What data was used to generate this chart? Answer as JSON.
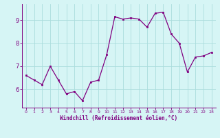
{
  "x": [
    0,
    1,
    2,
    3,
    4,
    5,
    6,
    7,
    8,
    9,
    10,
    11,
    12,
    13,
    14,
    15,
    16,
    17,
    18,
    19,
    20,
    21,
    22,
    23
  ],
  "y": [
    6.6,
    6.4,
    6.2,
    7.0,
    6.4,
    5.8,
    5.9,
    5.5,
    6.3,
    6.4,
    7.5,
    9.15,
    9.05,
    9.1,
    9.05,
    8.7,
    9.3,
    9.35,
    8.4,
    8.0,
    6.75,
    7.4,
    7.45,
    7.6
  ],
  "line_color": "#800080",
  "marker_color": "#800080",
  "bg_color": "#d6f5f5",
  "grid_color": "#aadddd",
  "axis_color": "#800080",
  "xlabel": "Windchill (Refroidissement éolien,°C)",
  "xlabel_color": "#800080",
  "yticks": [
    6,
    7,
    8,
    9
  ],
  "xticks": [
    0,
    1,
    2,
    3,
    4,
    5,
    6,
    7,
    8,
    9,
    10,
    11,
    12,
    13,
    14,
    15,
    16,
    17,
    18,
    19,
    20,
    21,
    22,
    23
  ],
  "xlim": [
    -0.5,
    23.5
  ],
  "ylim": [
    5.2,
    9.7
  ],
  "figsize": [
    3.2,
    2.0
  ],
  "dpi": 100
}
